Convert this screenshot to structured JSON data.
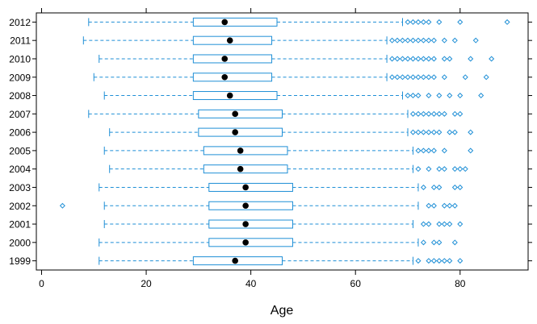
{
  "chart_data": {
    "type": "box",
    "orientation": "horizontal",
    "title": "",
    "xlabel": "Age",
    "ylabel": "",
    "xlim": [
      -1,
      93
    ],
    "xticks": [
      0,
      20,
      40,
      60,
      80
    ],
    "grid": false,
    "colors": {
      "box": "#1f8fd6",
      "median": "#000000",
      "background": "#ffffff"
    },
    "categories": [
      "1999",
      "2000",
      "2001",
      "2002",
      "2003",
      "2004",
      "2005",
      "2006",
      "2007",
      "2008",
      "2009",
      "2010",
      "2011",
      "2012"
    ],
    "boxes": [
      {
        "label": "1999",
        "min": 11,
        "q1": 29,
        "median": 37,
        "q3": 46,
        "max": 71,
        "outliers": [
          72,
          74,
          75,
          76,
          77,
          78,
          80
        ]
      },
      {
        "label": "2000",
        "min": 11,
        "q1": 32,
        "median": 39,
        "q3": 48,
        "max": 72,
        "outliers": [
          73,
          75,
          76,
          79
        ]
      },
      {
        "label": "2001",
        "min": 12,
        "q1": 32,
        "median": 39,
        "q3": 48,
        "max": 71,
        "outliers": [
          73,
          74,
          76,
          77,
          78,
          80
        ]
      },
      {
        "label": "2002",
        "min": 12,
        "q1": 32,
        "median": 39,
        "q3": 48,
        "max": 72,
        "outliers": [
          4,
          74,
          75,
          77,
          78,
          79
        ]
      },
      {
        "label": "2003",
        "min": 11,
        "q1": 32,
        "median": 39,
        "q3": 48,
        "max": 72,
        "outliers": [
          73,
          75,
          76,
          79,
          80
        ]
      },
      {
        "label": "2004",
        "min": 13,
        "q1": 31,
        "median": 38,
        "q3": 47,
        "max": 71,
        "outliers": [
          72,
          74,
          76,
          77,
          79,
          80,
          81
        ]
      },
      {
        "label": "2005",
        "min": 12,
        "q1": 31,
        "median": 38,
        "q3": 47,
        "max": 71,
        "outliers": [
          72,
          73,
          74,
          75,
          77,
          82
        ]
      },
      {
        "label": "2006",
        "min": 13,
        "q1": 30,
        "median": 37,
        "q3": 46,
        "max": 70,
        "outliers": [
          71,
          72,
          73,
          74,
          75,
          76,
          78,
          79,
          82
        ]
      },
      {
        "label": "2007",
        "min": 9,
        "q1": 30,
        "median": 37,
        "q3": 46,
        "max": 70,
        "outliers": [
          71,
          72,
          73,
          74,
          75,
          76,
          77,
          79,
          80
        ]
      },
      {
        "label": "2008",
        "min": 12,
        "q1": 29,
        "median": 36,
        "q3": 45,
        "max": 69,
        "outliers": [
          70,
          71,
          72,
          74,
          76,
          78,
          80,
          84
        ]
      },
      {
        "label": "2009",
        "min": 10,
        "q1": 29,
        "median": 35,
        "q3": 44,
        "max": 66,
        "outliers": [
          67,
          68,
          69,
          70,
          71,
          72,
          73,
          74,
          75,
          77,
          81,
          85
        ]
      },
      {
        "label": "2010",
        "min": 11,
        "q1": 29,
        "median": 35,
        "q3": 44,
        "max": 66,
        "outliers": [
          67,
          68,
          69,
          70,
          71,
          72,
          73,
          74,
          75,
          77,
          78,
          82,
          86
        ]
      },
      {
        "label": "2011",
        "min": 8,
        "q1": 29,
        "median": 36,
        "q3": 44,
        "max": 66,
        "outliers": [
          67,
          68,
          69,
          70,
          71,
          72,
          73,
          74,
          75,
          77,
          79,
          83
        ]
      },
      {
        "label": "2012",
        "min": 9,
        "q1": 29,
        "median": 35,
        "q3": 45,
        "max": 69,
        "outliers": [
          70,
          71,
          72,
          73,
          74,
          76,
          80,
          89
        ]
      }
    ]
  }
}
